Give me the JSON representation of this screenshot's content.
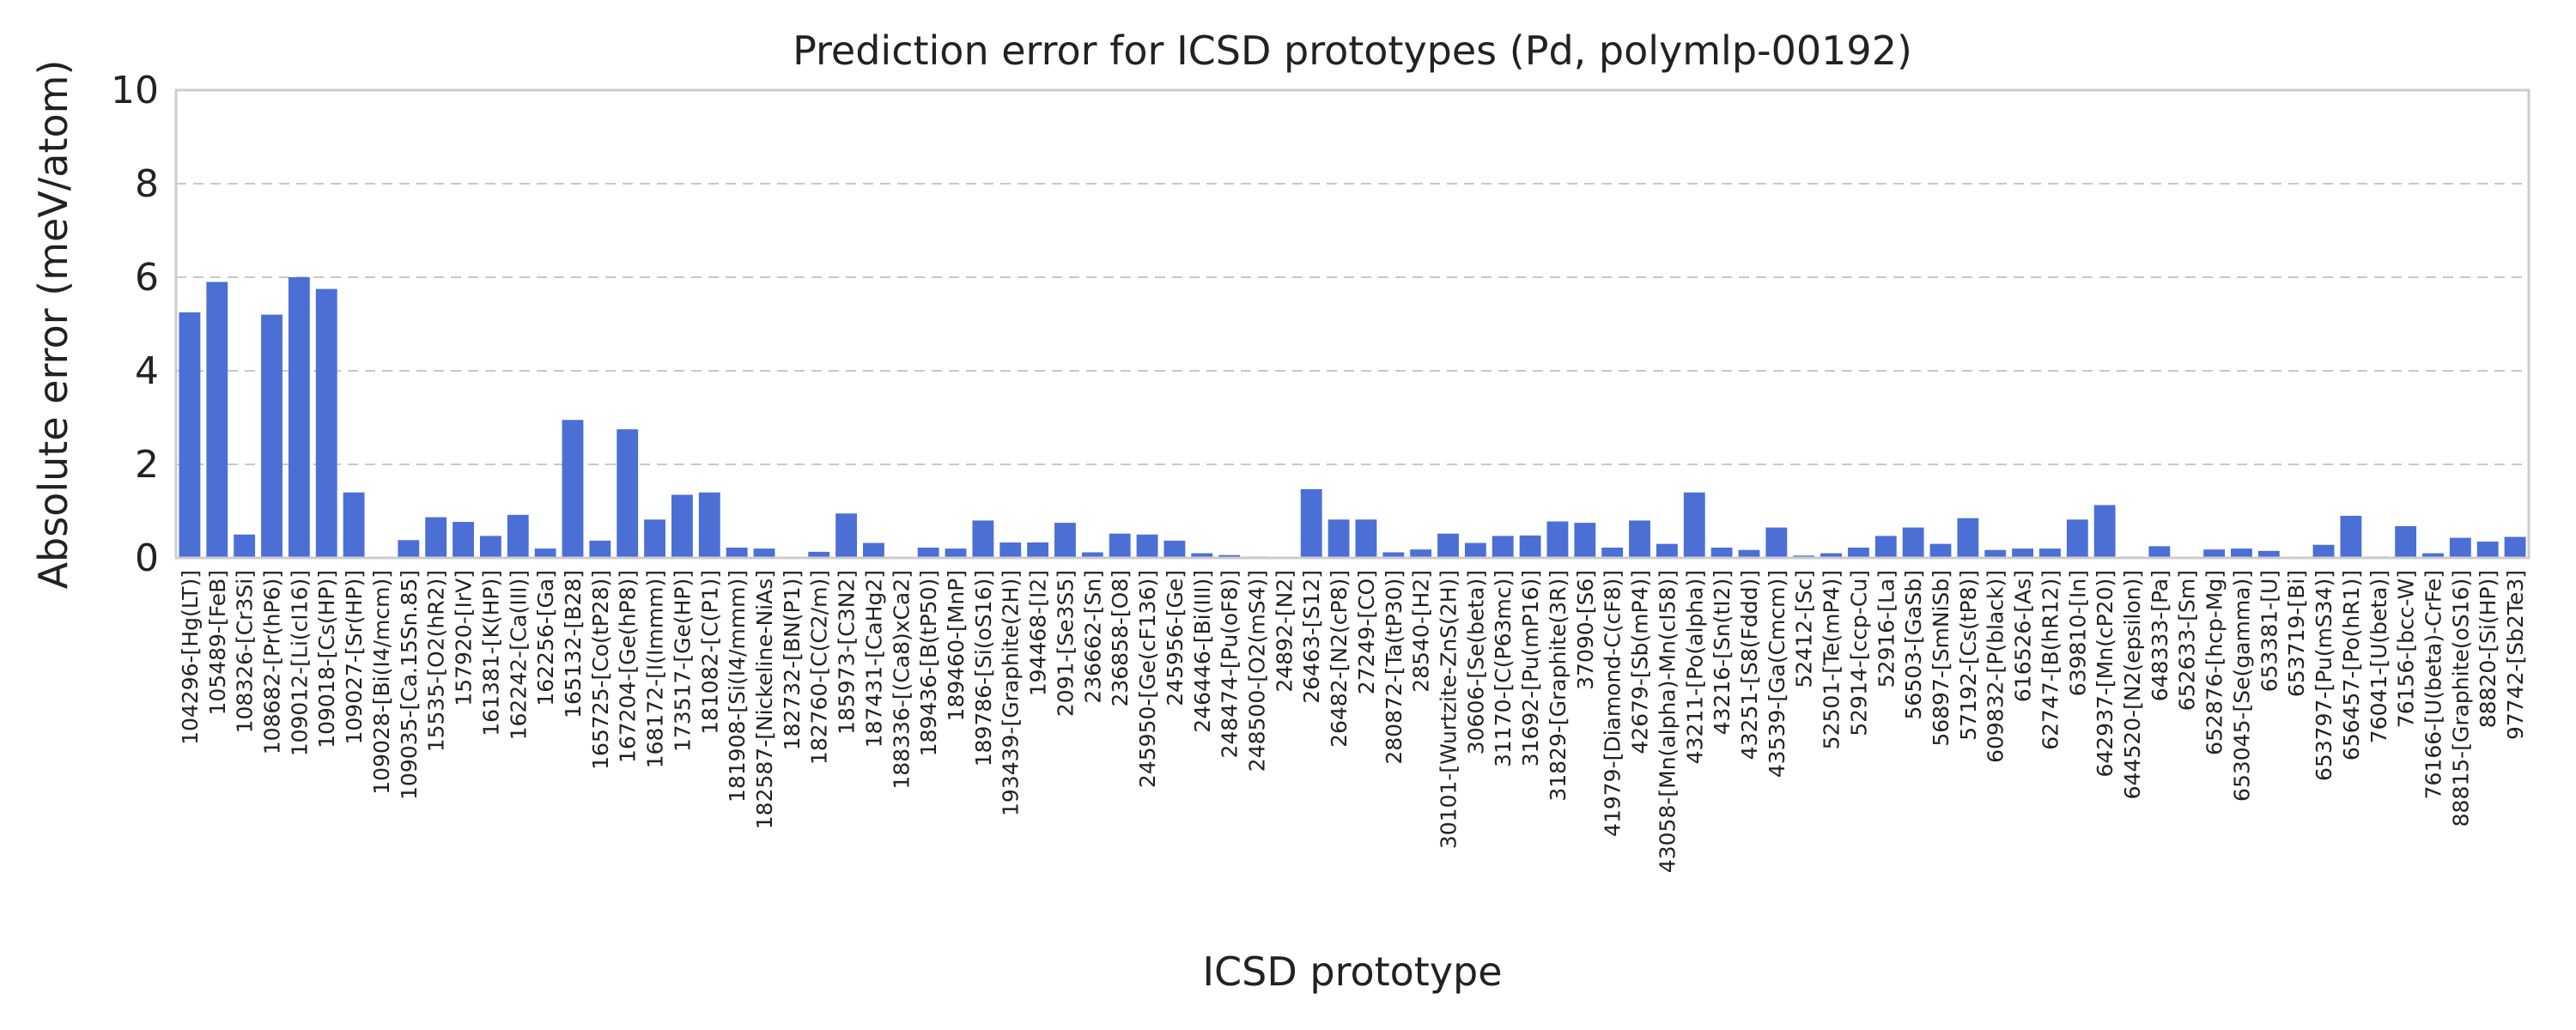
{
  "chart_data": {
    "type": "bar",
    "title": "Prediction error for ICSD prototypes (Pd, polymlp-00192)",
    "xlabel": "ICSD prototype",
    "ylabel": "Absolute error (meV/atom)",
    "ylim": [
      0,
      10
    ],
    "yticks": [
      0,
      2,
      4,
      6,
      8,
      10
    ],
    "grid": true,
    "bar_color": "#4c6fd6",
    "categories": [
      "104296-[Hg(LT)]",
      "105489-[FeB]",
      "108326-[Cr3Si]",
      "108682-[Pr(hP6)]",
      "109012-[Li(cI16)]",
      "109018-[Cs(HP)]",
      "109027-[Sr(HP)]",
      "109028-[Bi(I4/mcm)]",
      "109035-[Ca.15Sn.85]",
      "15535-[O2(hR2)]",
      "157920-[IrV]",
      "161381-[K(HP)]",
      "162242-[Ca(III)]",
      "162256-[Ga]",
      "165132-[B28]",
      "165725-[Co(tP28)]",
      "167204-[Ge(hP8)]",
      "168172-[I(Immm)]",
      "173517-[Ge(HP)]",
      "181082-[C(P1)]",
      "181908-[Si(I4/mmm)]",
      "182587-[Nickeline-NiAs]",
      "182732-[BN(P1)]",
      "182760-[C(C2/m)]",
      "185973-[C3N2]",
      "187431-[CaHg2]",
      "188336-[(Ca8)xCa2]",
      "189436-[B(tP50)]",
      "189460-[MnP]",
      "189786-[Si(oS16)]",
      "193439-[Graphite(2H)]",
      "194468-[I2]",
      "2091-[Se3S5]",
      "236662-[Sn]",
      "236858-[O8]",
      "245950-[Ge(cF136)]",
      "245956-[Ge]",
      "246446-[Bi(III)]",
      "248474-[Pu(oF8)]",
      "248500-[O2(mS4)]",
      "24892-[N2]",
      "26463-[S12]",
      "26482-[N2(cP8)]",
      "27249-[CO]",
      "280872-[Ta(tP30)]",
      "28540-[H2]",
      "30101-[Wurtzite-ZnS(2H)]",
      "30606-[Se(beta)]",
      "31170-[C(P63mc)]",
      "31692-[Pu(mP16)]",
      "31829-[Graphite(3R)]",
      "37090-[S6]",
      "41979-[Diamond-C(cF8)]",
      "42679-[Sb(mP4)]",
      "43058-[Mn(alpha)-Mn(cI58)]",
      "43211-[Po(alpha)]",
      "43216-[Sn(tI2)]",
      "43251-[S8(Fddd)]",
      "43539-[Ga(Cmcm)]",
      "52412-[Sc]",
      "52501-[Te(mP4)]",
      "52914-[ccp-Cu]",
      "52916-[La]",
      "56503-[GaSb]",
      "56897-[SmNiSb]",
      "57192-[Cs(tP8)]",
      "609832-[P(black)]",
      "616526-[As]",
      "62747-[B(hR12)]",
      "639810-[In]",
      "642937-[Mn(cP20)]",
      "644520-[N2(epsilon)]",
      "648333-[Pa]",
      "652633-[Sm]",
      "652876-[hcp-Mg]",
      "653045-[Se(gamma)]",
      "653381-[U]",
      "653719-[Bi]",
      "653797-[Pu(mS34)]",
      "656457-[Po(hR1)]",
      "76041-[U(beta)]",
      "76156-[bcc-W]",
      "76166-[U(beta)-CrFe]",
      "88815-[Graphite(oS16)]",
      "88820-[Si(HP)]",
      "97742-[Sb2Te3]"
    ],
    "values": [
      5.25,
      5.9,
      0.5,
      5.2,
      6.0,
      5.75,
      1.4,
      0.0,
      0.38,
      0.87,
      0.77,
      0.47,
      0.92,
      0.2,
      2.95,
      0.37,
      2.75,
      0.82,
      1.35,
      1.4,
      0.22,
      0.2,
      0.0,
      0.13,
      0.95,
      0.32,
      0.0,
      0.22,
      0.2,
      0.8,
      0.33,
      0.33,
      0.75,
      0.12,
      0.52,
      0.5,
      0.37,
      0.1,
      0.06,
      0.03,
      0.02,
      1.47,
      0.82,
      0.82,
      0.12,
      0.18,
      0.52,
      0.32,
      0.47,
      0.48,
      0.78,
      0.75,
      0.22,
      0.8,
      0.3,
      1.4,
      0.22,
      0.17,
      0.65,
      0.05,
      0.1,
      0.22,
      0.47,
      0.65,
      0.3,
      0.85,
      0.17,
      0.2,
      0.2,
      0.82,
      1.13,
      0.03,
      0.25,
      0.0,
      0.18,
      0.2,
      0.15,
      0.02,
      0.28,
      0.9,
      0.03,
      0.68,
      0.1,
      0.43,
      0.35,
      0.45
    ]
  }
}
